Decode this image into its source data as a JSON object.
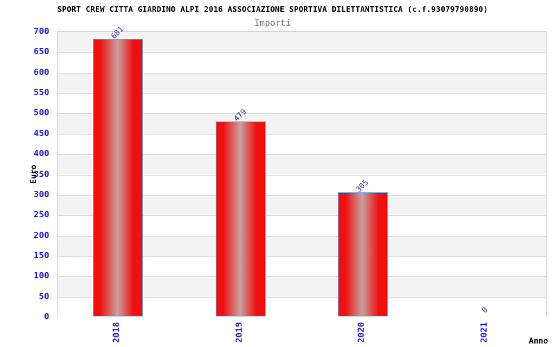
{
  "chart_data": {
    "type": "bar",
    "title": "SPORT CREW CITTA GIARDINO ALPI 2016 ASSOCIAZIONE SPORTIVA DILETTANTISTICA (c.f.93079790890)",
    "subtitle": "Importi",
    "xlabel": "Anno",
    "ylabel": "Euro",
    "categories": [
      "2018",
      "2019",
      "2020",
      "2021"
    ],
    "values": [
      681,
      479,
      305,
      0
    ],
    "ylim": [
      0,
      700
    ],
    "ytick_step": 50,
    "ytick_labels": [
      "0",
      "50",
      "100",
      "150",
      "200",
      "250",
      "300",
      "350",
      "400",
      "450",
      "500",
      "550",
      "600",
      "650",
      "700"
    ],
    "grid": true,
    "legend": false
  },
  "colors": {
    "background": "#ffffff",
    "title": "#000000",
    "subtitle": "#666666",
    "bar_fill_edge": "#ee1111",
    "bar_fill_center": "#c8a0a0",
    "bar_border": "#7ba2dd",
    "axis_tick_label": "#1c1cd8",
    "value_label": "#333399",
    "band_fill": "#f3f3f3",
    "grid_line": "#dcdcdc",
    "plot_border": "#d2d2d2"
  }
}
